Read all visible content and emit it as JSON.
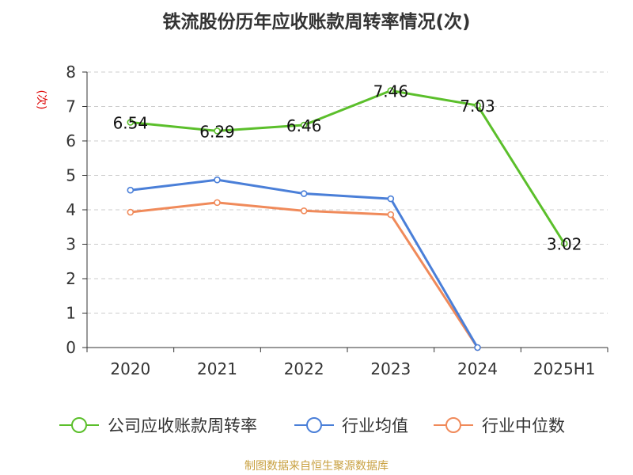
{
  "title": "铁流股份历年应收账款周转率情况(次)",
  "source": "制图数据来自恒生聚源数据库",
  "colors": {
    "title": "#333333",
    "axis": "#333333",
    "tick_label": "#333333",
    "grid": "#cccccc",
    "ylabel": "#dd0000",
    "source": "#c8a040"
  },
  "chart_data": {
    "type": "line",
    "title": "铁流股份历年应收账款周转率情况(次)",
    "ylabel": "(次)",
    "xlabel": "",
    "categories": [
      "2020",
      "2021",
      "2022",
      "2023",
      "2024",
      "2025H1"
    ],
    "ylim": [
      0,
      8
    ],
    "yticks": [
      0,
      1,
      2,
      3,
      4,
      5,
      6,
      7,
      8
    ],
    "grid": true,
    "legend_position": "bottom",
    "series": [
      {
        "name": "公司应收账款周转率",
        "color": "#5bbf2b",
        "values": [
          6.54,
          6.29,
          6.46,
          7.46,
          7.03,
          3.02
        ],
        "labels": [
          "6.54",
          "6.29",
          "6.46",
          "7.46",
          "7.03",
          "3.02"
        ]
      },
      {
        "name": "行业均值",
        "color": "#4a7fd8",
        "values": [
          4.57,
          4.87,
          4.47,
          4.32,
          0,
          null
        ],
        "labels": null
      },
      {
        "name": "行业中位数",
        "color": "#f08a5a",
        "values": [
          3.93,
          4.21,
          3.97,
          3.86,
          0,
          null
        ],
        "labels": null
      }
    ]
  }
}
